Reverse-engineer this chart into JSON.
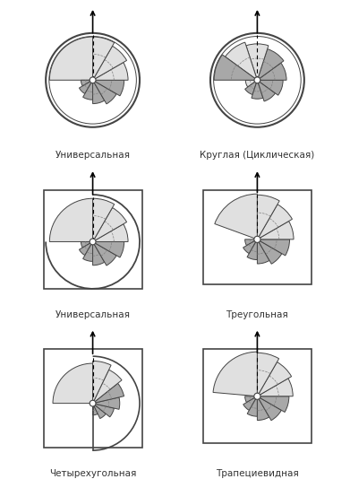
{
  "labels": [
    "Универсальная",
    "Круглая (Циклическая)",
    "Универсальная",
    "Треугольная",
    "Четырехугольная",
    "Трапециевидная"
  ],
  "light_gray": "#e0e0e0",
  "mid_gray": "#a8a8a8",
  "outline_color": "#444444",
  "bg_color": "#ffffff",
  "text_color": "#333333",
  "font_size": 7.5
}
